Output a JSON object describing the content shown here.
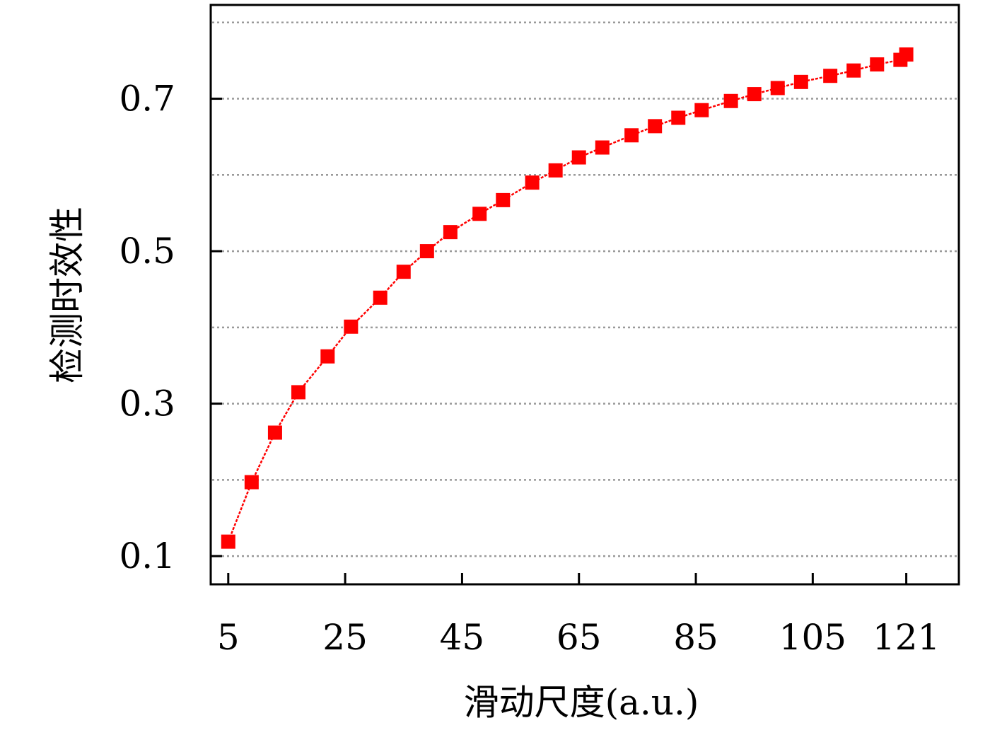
{
  "chart_data": {
    "type": "line",
    "title": "",
    "xlabel": "滑动尺度(a.u.)",
    "ylabel": "检测时效性",
    "x_ticks": [
      5,
      25,
      45,
      65,
      85,
      105,
      121
    ],
    "y_ticks": [
      0.1,
      0.3,
      0.5,
      0.7
    ],
    "y_grid": [
      0.1,
      0.2,
      0.3,
      0.4,
      0.5,
      0.6,
      0.7,
      0.8
    ],
    "xlim": [
      2,
      130
    ],
    "ylim": [
      0.063,
      0.823
    ],
    "grid": "horizontal dotted",
    "series": [
      {
        "color": "#ff0000",
        "marker": "square",
        "x": [
          5,
          9,
          13,
          17,
          22,
          26,
          31,
          35,
          39,
          43,
          48,
          52,
          57,
          61,
          65,
          69,
          74,
          78,
          82,
          86,
          91,
          95,
          99,
          103,
          108,
          112,
          116,
          120,
          121
        ],
        "y": [
          0.119,
          0.197,
          0.262,
          0.315,
          0.362,
          0.401,
          0.439,
          0.473,
          0.5,
          0.525,
          0.549,
          0.567,
          0.59,
          0.606,
          0.623,
          0.636,
          0.652,
          0.664,
          0.675,
          0.685,
          0.697,
          0.706,
          0.714,
          0.722,
          0.73,
          0.737,
          0.745,
          0.751,
          0.758
        ]
      }
    ]
  }
}
